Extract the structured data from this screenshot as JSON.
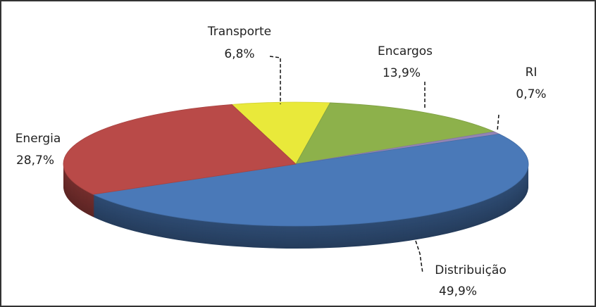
{
  "chart_data": {
    "type": "pie",
    "categories": [
      "Transporte",
      "Encargos",
      "RI",
      "Distribuição",
      "Energia"
    ],
    "values": [
      6.8,
      13.9,
      0.7,
      49.9,
      28.7
    ],
    "value_labels": [
      "6,8%",
      "13,9%",
      "0,7%",
      "49,9%",
      "28,7%"
    ],
    "colors": [
      "#e9e93a",
      "#8db14b",
      "#9384b4",
      "#4a79b8",
      "#b94a48"
    ]
  }
}
